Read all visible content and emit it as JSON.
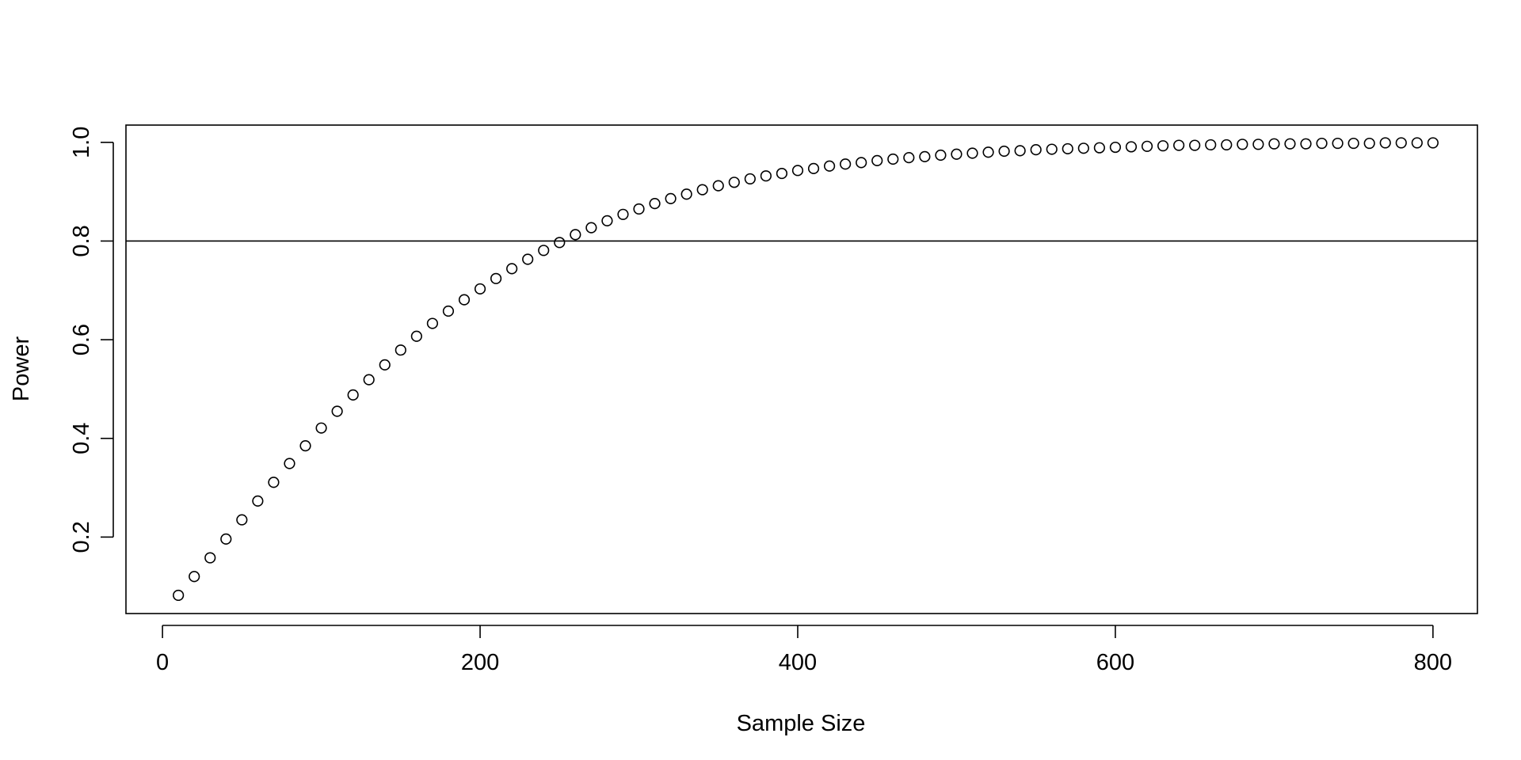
{
  "chart_data": {
    "type": "scatter",
    "title": "",
    "xlabel": "Sample Size",
    "ylabel": "Power",
    "xlim": [
      -23,
      828
    ],
    "ylim": [
      0.045,
      1.035
    ],
    "x_ticks": [
      0,
      200,
      400,
      600,
      800
    ],
    "y_ticks": [
      0.2,
      0.4,
      0.6,
      0.8,
      1.0
    ],
    "x_tick_labels": [
      "0",
      "200",
      "400",
      "600",
      "800"
    ],
    "y_tick_labels": [
      "0.2",
      "0.4",
      "0.6",
      "0.8",
      "1.0"
    ],
    "reference_line": {
      "orientation": "horizontal",
      "y": 0.8
    },
    "grid": false,
    "legend": "none",
    "marker": "open-circle",
    "color": "#000000",
    "x": [
      10,
      20,
      30,
      40,
      50,
      60,
      70,
      80,
      90,
      100,
      110,
      120,
      130,
      140,
      150,
      160,
      170,
      180,
      190,
      200,
      210,
      220,
      230,
      240,
      250,
      260,
      270,
      280,
      290,
      300,
      310,
      320,
      330,
      340,
      350,
      360,
      370,
      380,
      390,
      400,
      410,
      420,
      430,
      440,
      450,
      460,
      470,
      480,
      490,
      500,
      510,
      520,
      530,
      540,
      550,
      560,
      570,
      580,
      590,
      600,
      610,
      620,
      630,
      640,
      650,
      660,
      670,
      680,
      690,
      700,
      710,
      720,
      730,
      740,
      750,
      760,
      770,
      780,
      790,
      800
    ],
    "y": [
      0.082,
      0.12,
      0.158,
      0.196,
      0.235,
      0.273,
      0.311,
      0.349,
      0.385,
      0.421,
      0.455,
      0.488,
      0.519,
      0.549,
      0.579,
      0.607,
      0.633,
      0.658,
      0.681,
      0.703,
      0.724,
      0.744,
      0.763,
      0.781,
      0.797,
      0.813,
      0.827,
      0.841,
      0.854,
      0.865,
      0.876,
      0.886,
      0.895,
      0.904,
      0.912,
      0.919,
      0.926,
      0.932,
      0.937,
      0.943,
      0.947,
      0.952,
      0.956,
      0.959,
      0.963,
      0.966,
      0.969,
      0.971,
      0.974,
      0.976,
      0.978,
      0.98,
      0.982,
      0.983,
      0.985,
      0.986,
      0.987,
      0.988,
      0.989,
      0.99,
      0.991,
      0.992,
      0.993,
      0.994,
      0.994,
      0.995,
      0.995,
      0.996,
      0.996,
      0.997,
      0.997,
      0.997,
      0.998,
      0.998,
      0.998,
      0.998,
      0.999,
      0.999,
      0.999,
      0.999
    ]
  }
}
